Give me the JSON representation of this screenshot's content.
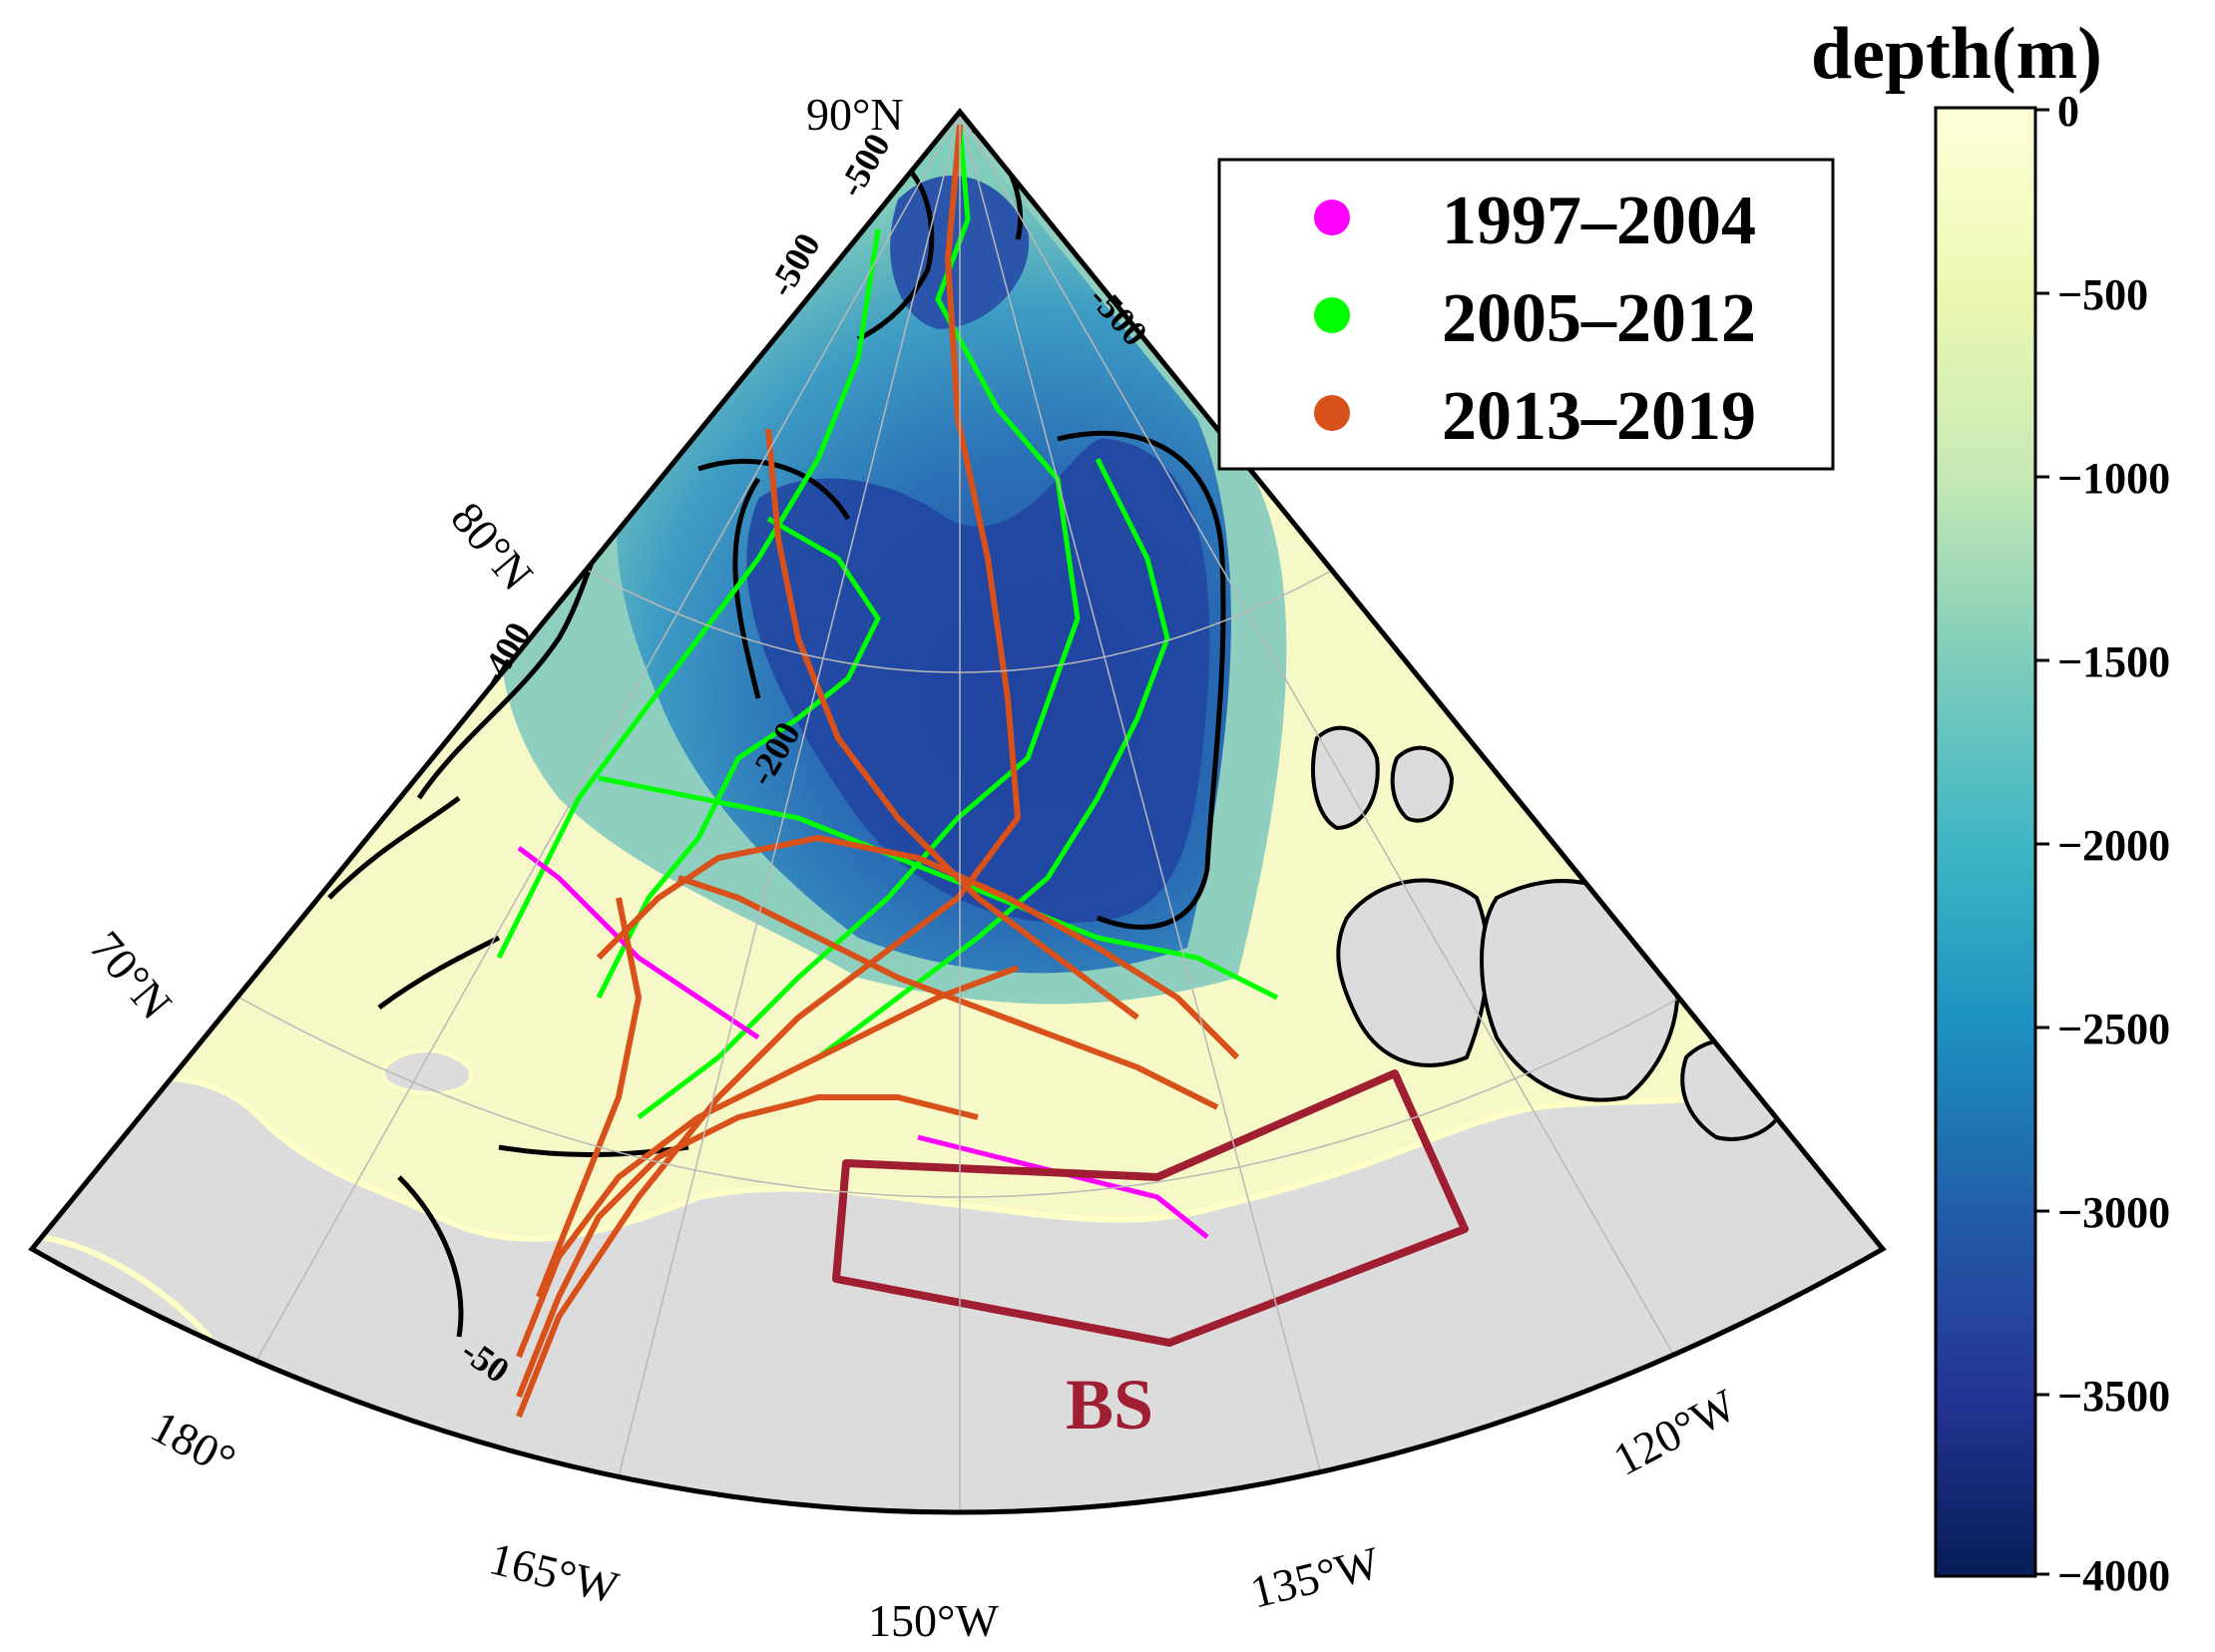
{
  "map": {
    "projection": "north-polar-stereographic-sector",
    "background_color": "#ffffff",
    "land_color": "#dcdcdc",
    "coast_color": "#ffffc8",
    "contour_color": "#000000",
    "latitude_labels": [
      "90°N",
      "80°N",
      "70°N"
    ],
    "longitude_labels": [
      "180°",
      "165°W",
      "150°W",
      "135°W",
      "120°W"
    ],
    "contour_labels": [
      "-500",
      "-500",
      "-500",
      "-400",
      "-200",
      "-50"
    ],
    "region": {
      "label": "BS",
      "color": "#a01e32"
    }
  },
  "legend": {
    "position": "top-right",
    "items": [
      {
        "label": "1997–2004",
        "color": "#ff00ff"
      },
      {
        "label": "2005–2012",
        "color": "#00ff00"
      },
      {
        "label": "2013–2019",
        "color": "#d8501a"
      }
    ]
  },
  "colorbar": {
    "title": "depth(m)",
    "min": -4000,
    "max": 0,
    "colormap": "YlGnBu",
    "ticks": [
      "0",
      "−500",
      "−1000",
      "−1500",
      "−2000",
      "−2500",
      "−3000",
      "−3500",
      "−4000"
    ],
    "stops": [
      "#ffffd9",
      "#edf8b1",
      "#c7e9b4",
      "#7fcdbb",
      "#41b6c4",
      "#1d91c0",
      "#225ea8",
      "#253494",
      "#081d58"
    ]
  }
}
